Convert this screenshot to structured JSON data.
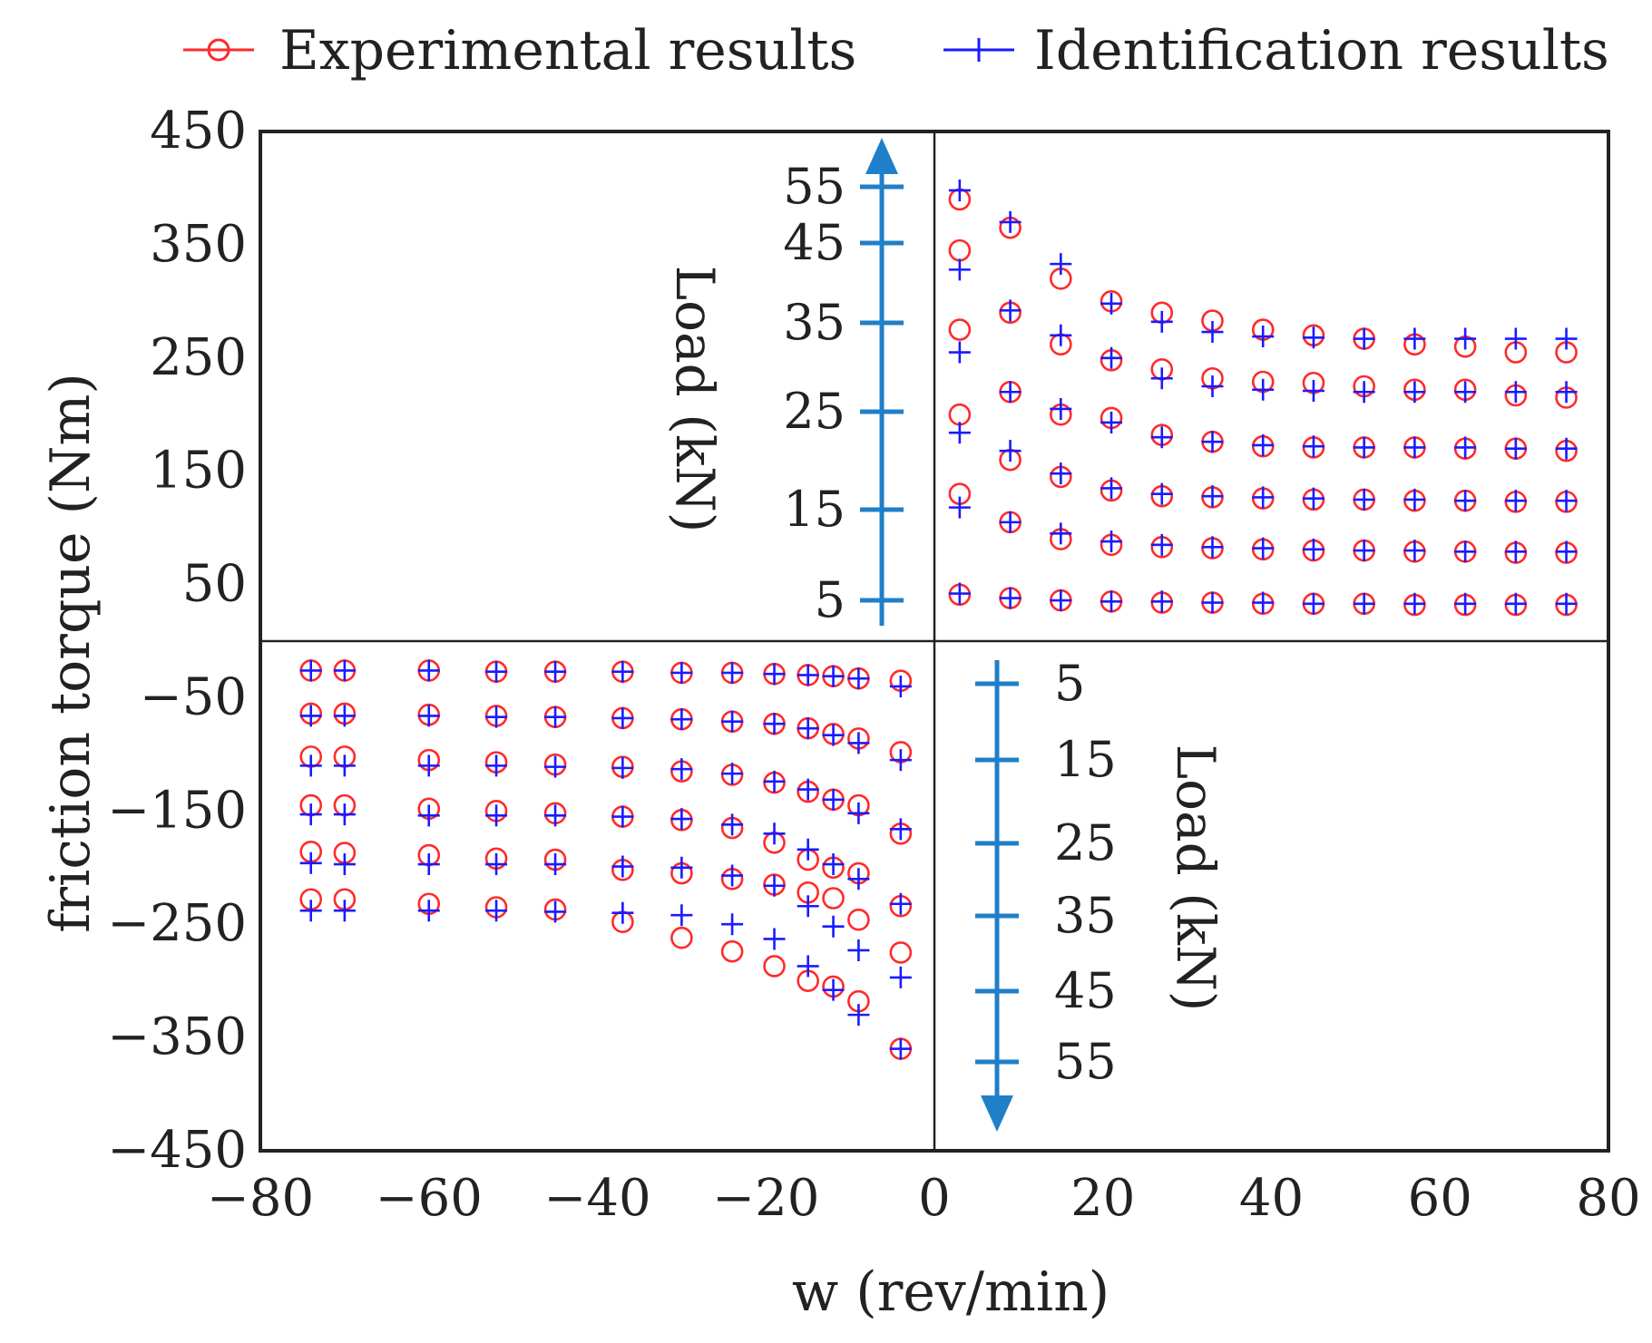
{
  "chart_data": {
    "type": "scatter",
    "xlabel": "w (rev/min)",
    "ylabel": "friction torque (Nm)",
    "xlim": [
      -80,
      80
    ],
    "ylim": [
      -450,
      450
    ],
    "xticks": [
      -80,
      -60,
      -40,
      -20,
      0,
      20,
      40,
      60,
      80
    ],
    "xtick_labels": [
      "−80",
      "−60",
      "−40",
      "−20",
      "0",
      "20",
      "40",
      "60",
      "80"
    ],
    "yticks": [
      450,
      350,
      250,
      150,
      50,
      -50,
      -150,
      -250,
      -350,
      -450
    ],
    "ytick_labels": [
      "450",
      "350",
      "250",
      "150",
      "50",
      "−50",
      "−150",
      "−250",
      "−350",
      "−450"
    ],
    "grid": false,
    "legend_position": "top",
    "legend": {
      "experimental": "Experimental results",
      "identification": "Identification results"
    },
    "colors": {
      "experimental": "#ff2a2a",
      "identification": "#1a1aff",
      "load_arrow": "#1f7fc8",
      "axes": "#222222"
    },
    "load_scale_positive": {
      "label": "Load (kN)",
      "ticks": [
        "5",
        "15",
        "25",
        "35",
        "45",
        "55"
      ],
      "direction": "up",
      "tick_torque_values": [
        35,
        115,
        193,
        270,
        345,
        395
      ]
    },
    "load_scale_negative": {
      "label": "Load (kN)",
      "ticks": [
        "5",
        "15",
        "25",
        "35",
        "45",
        "55"
      ],
      "direction": "down"
    },
    "positive_speeds": [
      3,
      9,
      15,
      21,
      27,
      33,
      39,
      45,
      51,
      57,
      63,
      69,
      75
    ],
    "negative_speeds": [
      -74,
      -70,
      -60,
      -52,
      -45,
      -37,
      -30,
      -24,
      -19,
      -15,
      -12,
      -9,
      -4
    ],
    "series": [
      {
        "name": "Experimental results",
        "marker": "circle",
        "positive": {
          "5kN": [
            41,
            38,
            36,
            35,
            34,
            34,
            33,
            33,
            33,
            32,
            32,
            32,
            32
          ],
          "15kN": [
            130,
            105,
            90,
            85,
            83,
            82,
            81,
            80,
            80,
            79,
            79,
            78,
            78
          ],
          "25kN": [
            200,
            160,
            145,
            133,
            128,
            127,
            126,
            125,
            125,
            124,
            124,
            123,
            123
          ],
          "35kN": [
            275,
            220,
            200,
            197,
            182,
            176,
            172,
            171,
            171,
            171,
            170,
            170,
            168
          ],
          "45kN": [
            345,
            290,
            262,
            248,
            240,
            232,
            229,
            228,
            225,
            222,
            222,
            217,
            215
          ],
          "55kN": [
            390,
            365,
            320,
            300,
            290,
            283,
            275,
            270,
            267,
            262,
            260,
            255,
            255
          ]
        },
        "negative": {
          "5kN": [
            -26,
            -26,
            -26,
            -27,
            -27,
            -27,
            -28,
            -28,
            -29,
            -30,
            -31,
            -33,
            -35
          ],
          "15kN": [
            -64,
            -64,
            -65,
            -66,
            -67,
            -68,
            -69,
            -71,
            -73,
            -77,
            -82,
            -86,
            -98
          ],
          "25kN": [
            -102,
            -102,
            -105,
            -107,
            -109,
            -111,
            -115,
            -118,
            -125,
            -133,
            -140,
            -145,
            -170
          ],
          "35kN": [
            -145,
            -145,
            -148,
            -150,
            -152,
            -155,
            -158,
            -165,
            -178,
            -193,
            -200,
            -205,
            -234
          ],
          "45kN": [
            -186,
            -187,
            -189,
            -192,
            -193,
            -202,
            -205,
            -210,
            -215,
            -222,
            -227,
            -246,
            -275
          ],
          "55kN": [
            -228,
            -228,
            -232,
            -235,
            -237,
            -248,
            -262,
            -274,
            -287,
            -300,
            -305,
            -318,
            -360
          ]
        }
      },
      {
        "name": "Identification results",
        "marker": "plus",
        "positive": {
          "5kN": [
            42,
            38,
            36,
            35,
            35,
            34,
            34,
            33,
            33,
            33,
            33,
            33,
            33
          ],
          "15kN": [
            118,
            105,
            95,
            88,
            85,
            83,
            82,
            81,
            80,
            80,
            79,
            79,
            79
          ],
          "25kN": [
            184,
            168,
            148,
            135,
            130,
            128,
            127,
            126,
            125,
            125,
            124,
            124,
            124
          ],
          "35kN": [
            255,
            220,
            205,
            193,
            180,
            176,
            173,
            172,
            171,
            171,
            171,
            170,
            170
          ],
          "45kN": [
            328,
            292,
            270,
            250,
            232,
            225,
            222,
            221,
            220,
            220,
            220,
            220,
            220
          ],
          "55kN": [
            398,
            370,
            333,
            298,
            282,
            273,
            269,
            268,
            267,
            267,
            267,
            267,
            267
          ]
        },
        "negative": {
          "5kN": [
            -26,
            -26,
            -26,
            -27,
            -27,
            -27,
            -28,
            -28,
            -29,
            -30,
            -31,
            -33,
            -40
          ],
          "15kN": [
            -66,
            -66,
            -66,
            -67,
            -67,
            -68,
            -69,
            -71,
            -73,
            -77,
            -83,
            -90,
            -105
          ],
          "25kN": [
            -110,
            -110,
            -110,
            -110,
            -111,
            -112,
            -113,
            -117,
            -124,
            -131,
            -140,
            -152,
            -166
          ],
          "35kN": [
            -153,
            -153,
            -154,
            -154,
            -154,
            -155,
            -157,
            -162,
            -170,
            -184,
            -197,
            -210,
            -232
          ],
          "45kN": [
            -196,
            -197,
            -197,
            -197,
            -197,
            -199,
            -200,
            -207,
            -216,
            -234,
            -252,
            -273,
            -297
          ],
          "55kN": [
            -238,
            -238,
            -238,
            -238,
            -239,
            -240,
            -242,
            -250,
            -263,
            -287,
            -308,
            -330,
            -360
          ]
        }
      }
    ]
  }
}
